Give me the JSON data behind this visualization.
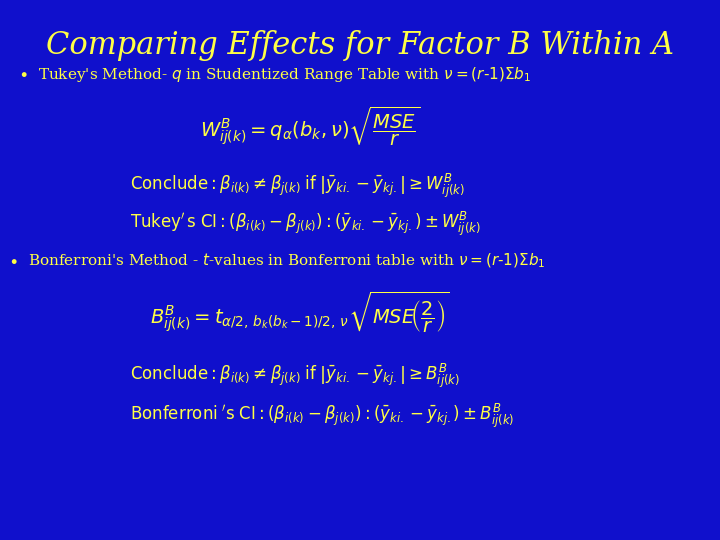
{
  "bg_color": "#1010CC",
  "title": "Comparing Effects for Factor B Within A",
  "title_color": "#FFFF44",
  "title_fontsize": 22,
  "text_color": "#FFFF44",
  "formula_color": "#FFFF44",
  "white_color": "#FFFFFF"
}
